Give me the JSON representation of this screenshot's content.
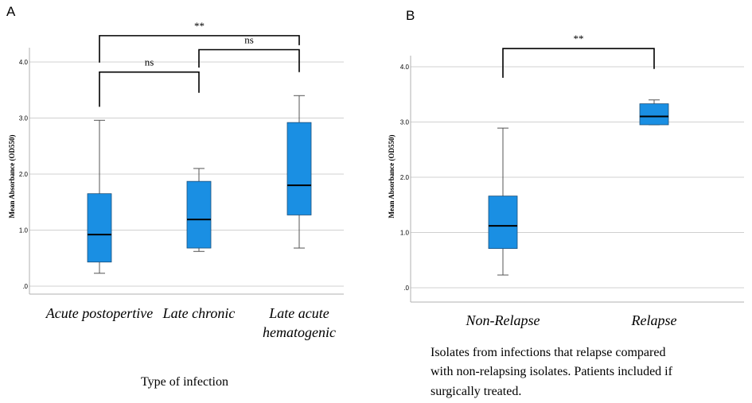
{
  "chart_data": [
    {
      "panel": "A",
      "type": "box",
      "ylabel": "Mean Absorbance (OD550)",
      "xlabel": "Type of infection",
      "ylim": [
        -0.1,
        4.3
      ],
      "yticks": [
        ".0",
        "1.0",
        "2.0",
        "3.0",
        "4.0"
      ],
      "grid": true,
      "box_color": "#1a8fe3",
      "categories": [
        {
          "label_lines": [
            "Acute postopertive"
          ],
          "min": 0.23,
          "q1": 0.43,
          "median": 0.92,
          "q3": 1.65,
          "max": 2.96
        },
        {
          "label_lines": [
            "Late chronic"
          ],
          "min": 0.62,
          "q1": 0.68,
          "median": 1.19,
          "q3": 1.87,
          "max": 2.1
        },
        {
          "label_lines": [
            "Late acute",
            "hematogenic"
          ],
          "min": 0.68,
          "q1": 1.27,
          "median": 1.8,
          "q3": 2.92,
          "max": 3.4
        }
      ],
      "significance": [
        {
          "from": 0,
          "to": 1,
          "label": "ns",
          "y": 3.82,
          "drop_left": 3.2,
          "drop_right": 3.45
        },
        {
          "from": 1,
          "to": 2,
          "label": "ns",
          "y": 4.22,
          "drop_left": 3.9,
          "drop_right": 3.82
        },
        {
          "from": 0,
          "to": 2,
          "label": "**",
          "y": 4.47,
          "drop_left": 3.99,
          "drop_right": 4.3
        }
      ]
    },
    {
      "panel": "B",
      "type": "box",
      "ylabel": "Mean Absorbance (OD550)",
      "xlabel": "",
      "ylim": [
        -0.1,
        4.2
      ],
      "yticks": [
        ".0",
        "1.0",
        "2.0",
        "3.0",
        "4.0"
      ],
      "grid": true,
      "box_color": "#1a8fe3",
      "categories": [
        {
          "label_lines": [
            "Non-Relapse"
          ],
          "min": 0.23,
          "q1": 0.71,
          "median": 1.12,
          "q3": 1.66,
          "max": 2.89
        },
        {
          "label_lines": [
            "Relapse"
          ],
          "min": 2.95,
          "q1": 2.95,
          "median": 3.1,
          "q3": 3.33,
          "max": 3.4
        }
      ],
      "significance": [
        {
          "from": 0,
          "to": 1,
          "label": "**",
          "y": 4.33,
          "drop_left": 3.8,
          "drop_right": 3.96
        }
      ]
    }
  ],
  "caption_lines": [
    "Isolates from infections that relapse compared",
    "with non-relapsing isolates. Patients included if",
    "surgically treated."
  ],
  "colors": {
    "box": "#1a8fe3",
    "grid": "#d0d0d0",
    "axis": "#b0b0b0"
  }
}
